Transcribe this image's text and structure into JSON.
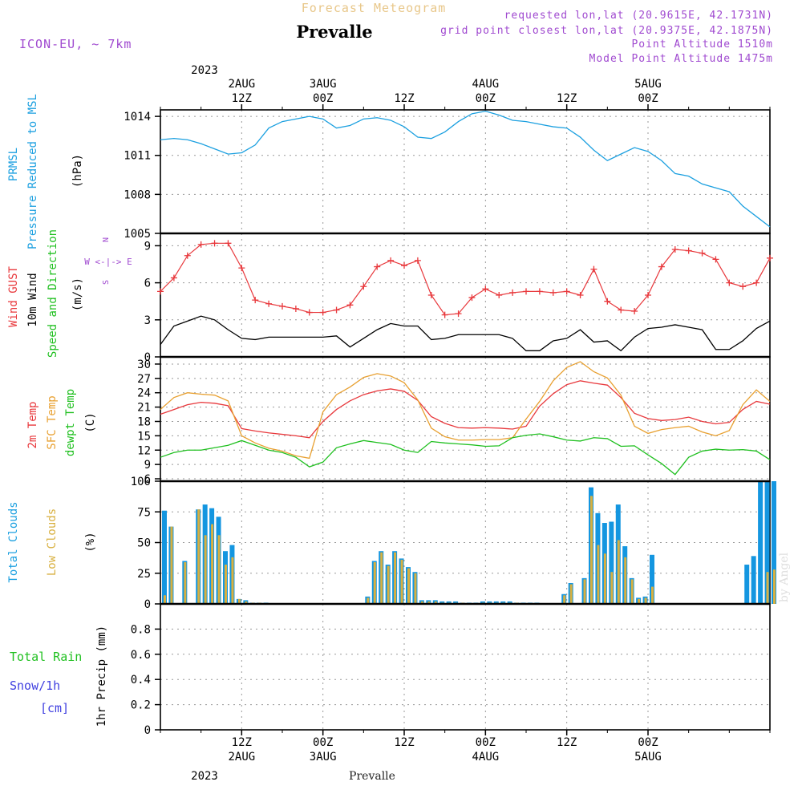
{
  "header": {
    "product_title": "Forecast Meteogram",
    "location": "Prevalle",
    "model": "ICON-EU, ~ 7km",
    "requested": "requested lon,lat (20.9615E, 42.1731N)",
    "grid_point": "grid point closest lon,lat (20.9375E, 42.1875N)",
    "point_altitude": "Point Altitude 1510m",
    "model_altitude": "Model Point Altitude 1475m",
    "footer_location": "Prevalle",
    "watermark": "by Angel"
  },
  "time_axis": {
    "top_year": "2023",
    "bottom_year": "2023",
    "ticks": [
      {
        "hour": 12,
        "label": "12Z",
        "date": "2AUG"
      },
      {
        "hour": 24,
        "label": "00Z",
        "date": "3AUG"
      },
      {
        "hour": 36,
        "label": "12Z",
        "date": ""
      },
      {
        "hour": 48,
        "label": "00Z",
        "date": "4AUG"
      },
      {
        "hour": 60,
        "label": "12Z",
        "date": ""
      },
      {
        "hour": 72,
        "label": "00Z",
        "date": "5AUG"
      }
    ]
  },
  "panel_labels": {
    "pressure": {
      "line1": "PRMSL",
      "line2": "Pressure Reduced to MSL",
      "unit": "(hPa)"
    },
    "wind": {
      "gust": "Wind GUST",
      "wind10": "10m Wind",
      "dir": "Speed and Direction",
      "unit": "(m/s)",
      "rose": "W <-|-> E",
      "north": "N",
      "south": "S"
    },
    "temp": {
      "t2m": "2m Temp",
      "sfc": "SFC Temp",
      "dew": "dewpt Temp",
      "unit": "(C)"
    },
    "clouds": {
      "total": "Total Clouds",
      "low": "Low Clouds",
      "unit": "(%)"
    },
    "precip": {
      "rain": "Total  Rain",
      "snow": "Snow/1h",
      "cm": "[cm]",
      "axis": "1hr Precip (mm)"
    }
  },
  "colors": {
    "pressure": "#1ca0e0",
    "gust": "#e8383c",
    "wind10": "#000000",
    "t2m": "#e8383c",
    "sfc": "#e8a030",
    "dew": "#20c020",
    "total_cloud": "#1496e0",
    "low_cloud": "#d8b040",
    "meta": "#a04ad0",
    "rain": "#20c020",
    "snow": "#4040e0"
  },
  "chart_data": [
    {
      "type": "line",
      "panel": "pressure",
      "ylabel": "(hPa)",
      "yticks": [
        1005,
        1008,
        1011,
        1014
      ],
      "ylim": [
        1005,
        1014.5
      ],
      "x_hours": [
        0,
        2,
        4,
        6,
        8,
        10,
        12,
        14,
        16,
        18,
        20,
        22,
        24,
        26,
        28,
        30,
        32,
        34,
        36,
        38,
        40,
        42,
        44,
        46,
        48,
        50,
        52,
        54,
        56,
        58,
        60,
        62,
        64,
        66,
        68,
        70,
        72,
        74,
        76,
        78,
        80,
        82,
        84,
        86,
        88,
        90
      ],
      "values": [
        1012.2,
        1012.3,
        1012.2,
        1011.9,
        1011.5,
        1011.1,
        1011.2,
        1011.8,
        1013.1,
        1013.6,
        1013.8,
        1014.0,
        1013.8,
        1013.1,
        1013.3,
        1013.8,
        1013.9,
        1013.7,
        1013.2,
        1012.4,
        1012.3,
        1012.8,
        1013.6,
        1014.2,
        1014.4,
        1014.1,
        1013.7,
        1013.6,
        1013.4,
        1013.2,
        1013.1,
        1012.4,
        1011.4,
        1010.6,
        1011.1,
        1011.6,
        1011.3,
        1010.6,
        1009.6,
        1009.4,
        1008.8,
        1008.5,
        1008.2,
        1007.1,
        1006.3,
        1005.5
      ],
      "grid": true
    },
    {
      "type": "line",
      "panel": "wind",
      "ylabel": "(m/s)",
      "yticks": [
        0,
        3,
        6,
        9
      ],
      "ylim": [
        0,
        10
      ],
      "x_hours": [
        0,
        2,
        4,
        6,
        8,
        10,
        12,
        14,
        16,
        18,
        20,
        22,
        24,
        26,
        28,
        30,
        32,
        34,
        36,
        38,
        40,
        42,
        44,
        46,
        48,
        50,
        52,
        54,
        56,
        58,
        60,
        62,
        64,
        66,
        68,
        70,
        72,
        74,
        76,
        78,
        80,
        82,
        84,
        86,
        88,
        90
      ],
      "series": [
        {
          "name": "Wind GUST",
          "values": [
            5.3,
            6.4,
            8.2,
            9.1,
            9.2,
            9.2,
            7.2,
            4.6,
            4.3,
            4.1,
            3.9,
            3.6,
            3.6,
            3.8,
            4.2,
            5.7,
            7.3,
            7.8,
            7.4,
            7.8,
            5.0,
            3.4,
            3.5,
            4.8,
            5.5,
            5.0,
            5.2,
            5.3,
            5.3,
            5.2,
            5.3,
            5.0,
            7.1,
            4.5,
            3.8,
            3.7,
            5.0,
            7.3,
            8.7,
            8.6,
            8.4,
            7.9,
            6.0,
            5.7,
            6.0,
            8.0
          ]
        },
        {
          "name": "10m Wind",
          "values": [
            1.0,
            2.5,
            2.9,
            3.3,
            3.0,
            2.2,
            1.5,
            1.4,
            1.6,
            1.6,
            1.6,
            1.6,
            1.6,
            1.7,
            0.8,
            1.5,
            2.2,
            2.7,
            2.5,
            2.5,
            1.4,
            1.5,
            1.8,
            1.8,
            1.8,
            1.8,
            1.5,
            0.5,
            0.5,
            1.3,
            1.5,
            2.2,
            1.2,
            1.3,
            0.5,
            1.6,
            2.3,
            2.4,
            2.6,
            2.4,
            2.2,
            0.6,
            0.6,
            1.3,
            2.3,
            2.9
          ]
        }
      ],
      "grid": true
    },
    {
      "type": "line",
      "panel": "temp",
      "ylabel": "(C)",
      "yticks": [
        6,
        9,
        12,
        15,
        18,
        21,
        24,
        27,
        30
      ],
      "ylim": [
        5.5,
        31.5
      ],
      "x_hours": [
        0,
        2,
        4,
        6,
        8,
        10,
        12,
        14,
        16,
        18,
        20,
        22,
        24,
        26,
        28,
        30,
        32,
        34,
        36,
        38,
        40,
        42,
        44,
        46,
        48,
        50,
        52,
        54,
        56,
        58,
        60,
        62,
        64,
        66,
        68,
        70,
        72,
        74,
        76,
        78,
        80,
        82,
        84,
        86,
        88,
        90
      ],
      "series": [
        {
          "name": "2m Temp",
          "values": [
            19.5,
            20.5,
            21.5,
            22.0,
            21.8,
            21.3,
            16.5,
            16.0,
            15.6,
            15.3,
            15.0,
            14.6,
            18.0,
            20.5,
            22.3,
            23.6,
            24.4,
            24.8,
            24.3,
            22.4,
            19.0,
            17.6,
            16.7,
            16.6,
            16.7,
            16.6,
            16.4,
            17.0,
            21.2,
            23.8,
            25.7,
            26.5,
            26.0,
            25.6,
            23.0,
            19.7,
            18.6,
            18.2,
            18.4,
            18.9,
            18.0,
            17.5,
            17.8,
            20.5,
            22.2,
            21.6
          ]
        },
        {
          "name": "SFC Temp",
          "values": [
            20.5,
            23.0,
            24.0,
            23.7,
            23.5,
            22.3,
            15.0,
            13.5,
            12.4,
            11.8,
            10.8,
            10.3,
            20.0,
            23.6,
            25.2,
            27.2,
            28.0,
            27.5,
            26.1,
            22.5,
            16.6,
            14.8,
            14.1,
            14.1,
            14.2,
            14.2,
            14.6,
            18.5,
            22.2,
            26.5,
            29.3,
            30.5,
            28.4,
            27.1,
            23.5,
            17.0,
            15.5,
            16.3,
            16.7,
            17.0,
            15.8,
            15.0,
            16.1,
            21.5,
            24.6,
            22.2
          ]
        },
        {
          "name": "dewpt Temp",
          "values": [
            10.5,
            11.5,
            12.0,
            12.0,
            12.5,
            13.0,
            14.0,
            13.0,
            12.0,
            11.5,
            10.5,
            8.5,
            9.5,
            12.5,
            13.3,
            14.0,
            13.6,
            13.2,
            12.0,
            11.5,
            13.8,
            13.5,
            13.3,
            13.1,
            12.8,
            12.9,
            14.6,
            15.1,
            15.4,
            14.8,
            14.1,
            13.9,
            14.6,
            14.4,
            12.8,
            12.9,
            11.0,
            9.2,
            6.9,
            10.5,
            11.8,
            12.2,
            12.0,
            12.1,
            11.8,
            10.0
          ]
        }
      ],
      "grid": true
    },
    {
      "type": "bar",
      "panel": "clouds",
      "ylabel": "(%)",
      "yticks": [
        0,
        25,
        50,
        75,
        100
      ],
      "ylim": [
        0,
        100
      ],
      "x_hours": [
        0,
        1,
        2,
        3,
        4,
        5,
        6,
        7,
        8,
        9,
        10,
        11,
        12,
        13,
        14,
        15,
        16,
        17,
        18,
        19,
        20,
        21,
        22,
        23,
        24,
        25,
        26,
        27,
        28,
        29,
        30,
        31,
        32,
        33,
        34,
        35,
        36,
        37,
        38,
        39,
        40,
        41,
        42,
        43,
        44,
        45,
        46,
        47,
        48,
        49,
        50,
        51,
        52,
        53,
        54,
        55,
        56,
        57,
        58,
        59,
        60,
        61,
        62,
        63,
        64,
        65,
        66,
        67,
        68,
        69,
        70,
        71,
        72,
        73,
        74,
        75,
        76,
        77,
        78,
        79,
        80,
        81,
        82,
        83,
        84,
        85,
        86,
        87,
        88,
        89,
        90
      ],
      "series": [
        {
          "name": "Total Clouds",
          "values": [
            76,
            63,
            0,
            35,
            0,
            77,
            81,
            78,
            71,
            43,
            48,
            4,
            3,
            1,
            1,
            1,
            0,
            0,
            0,
            0,
            0,
            0,
            0,
            0,
            0,
            0,
            0,
            0,
            0,
            0,
            6,
            35,
            43,
            32,
            43,
            37,
            30,
            26,
            3,
            3,
            3,
            2,
            2,
            2,
            1,
            1,
            1,
            2,
            2,
            2,
            2,
            2,
            1,
            1,
            1,
            1,
            0,
            0,
            0,
            8,
            17,
            0,
            21,
            95,
            74,
            66,
            67,
            81,
            47,
            21,
            5,
            6,
            40,
            0,
            0,
            0,
            0,
            0,
            0,
            0,
            0,
            0,
            0,
            0,
            0,
            0,
            32,
            39,
            100,
            100,
            100
          ]
        },
        {
          "name": "Low Clouds",
          "values": [
            7,
            63,
            0,
            34,
            0,
            77,
            56,
            65,
            56,
            32,
            38,
            4,
            2,
            1,
            1,
            0,
            0,
            0,
            0,
            0,
            0,
            0,
            0,
            0,
            0,
            0,
            0,
            0,
            0,
            0,
            5,
            34,
            42,
            31,
            42,
            36,
            29,
            25,
            2,
            2,
            2,
            1,
            1,
            1,
            1,
            0,
            0,
            1,
            1,
            1,
            1,
            1,
            1,
            0,
            0,
            0,
            0,
            0,
            0,
            7,
            16,
            0,
            20,
            88,
            48,
            41,
            26,
            52,
            38,
            20,
            4,
            5,
            14,
            0,
            0,
            0,
            0,
            0,
            0,
            0,
            0,
            0,
            0,
            0,
            0,
            0,
            0,
            0,
            0,
            26,
            28
          ]
        }
      ],
      "grid": true
    },
    {
      "type": "bar",
      "panel": "precip",
      "ylabel": "1hr Precip (mm)",
      "yticks": [
        0,
        0.2,
        0.4,
        0.6,
        0.8
      ],
      "ylim": [
        0,
        1.0
      ],
      "values": [],
      "grid": true
    }
  ]
}
